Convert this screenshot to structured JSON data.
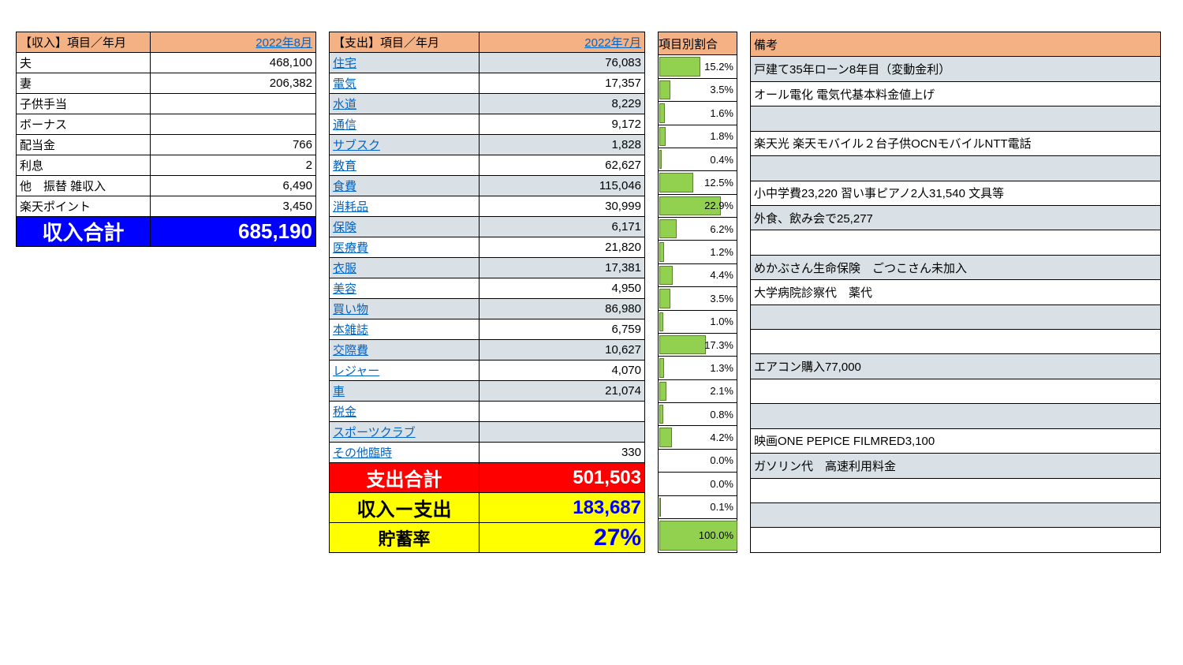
{
  "income": {
    "header_label": "【収入】項目／年月",
    "header_period": "2022年8月",
    "rows": [
      {
        "label": "夫",
        "value": "468,100"
      },
      {
        "label": "妻",
        "value": "206,382"
      },
      {
        "label": "子供手当",
        "value": ""
      },
      {
        "label": "ボーナス",
        "value": ""
      },
      {
        "label": "配当金",
        "value": "766"
      },
      {
        "label": "利息",
        "value": "2"
      },
      {
        "label": "他　振替 雑収入",
        "value": "6,490"
      },
      {
        "label": "楽天ポイント",
        "value": "3,450"
      }
    ],
    "total_label": "収入合計",
    "total_value": "685,190"
  },
  "expense": {
    "header_label": "【支出】項目／年月",
    "header_period": "2022年7月",
    "pct_header": "項目別割合",
    "notes_header": "備考",
    "rows": [
      {
        "label": "住宅",
        "value": "76,083",
        "pct": 15.2,
        "pct_label": "15.2%",
        "note": "戸建て35年ローン8年目（変動金利）"
      },
      {
        "label": "電気",
        "value": "17,357",
        "pct": 3.5,
        "pct_label": "3.5%",
        "note": "オール電化 電気代基本料金値上げ"
      },
      {
        "label": "水道",
        "value": "8,229",
        "pct": 1.6,
        "pct_label": "1.6%",
        "note": ""
      },
      {
        "label": "通信",
        "value": "9,172",
        "pct": 1.8,
        "pct_label": "1.8%",
        "note": "楽天光 楽天モバイル２台子供OCNモバイルNTT電話"
      },
      {
        "label": "サブスク",
        "value": "1,828",
        "pct": 0.4,
        "pct_label": "0.4%",
        "note": ""
      },
      {
        "label": "教育",
        "value": "62,627",
        "pct": 12.5,
        "pct_label": "12.5%",
        "note": "小中学費23,220 習い事ピアノ2人31,540 文具等"
      },
      {
        "label": "食費",
        "value": "115,046",
        "pct": 22.9,
        "pct_label": "22.9%",
        "note": "外食、飲み会で25,277"
      },
      {
        "label": "消耗品",
        "value": "30,999",
        "pct": 6.2,
        "pct_label": "6.2%",
        "note": ""
      },
      {
        "label": "保険",
        "value": "6,171",
        "pct": 1.2,
        "pct_label": "1.2%",
        "note": "めかぶさん生命保険　ごつこさん未加入"
      },
      {
        "label": "医療費",
        "value": "21,820",
        "pct": 4.4,
        "pct_label": "4.4%",
        "note": "大学病院診察代　薬代"
      },
      {
        "label": "衣服",
        "value": "17,381",
        "pct": 3.5,
        "pct_label": "3.5%",
        "note": ""
      },
      {
        "label": "美容",
        "value": "4,950",
        "pct": 1.0,
        "pct_label": "1.0%",
        "note": ""
      },
      {
        "label": "買い物",
        "value": "86,980",
        "pct": 17.3,
        "pct_label": "17.3%",
        "note": "エアコン購入77,000"
      },
      {
        "label": "本雑誌",
        "value": "6,759",
        "pct": 1.3,
        "pct_label": "1.3%",
        "note": ""
      },
      {
        "label": "交際費",
        "value": "10,627",
        "pct": 2.1,
        "pct_label": "2.1%",
        "note": ""
      },
      {
        "label": "レジャー",
        "value": "4,070",
        "pct": 0.8,
        "pct_label": "0.8%",
        "note": "映画ONE PEPICE FILMRED3,100"
      },
      {
        "label": "車",
        "value": "21,074",
        "pct": 4.2,
        "pct_label": "4.2%",
        "note": "ガソリン代　高速利用料金"
      },
      {
        "label": "税金",
        "value": "",
        "pct": 0.0,
        "pct_label": "0.0%",
        "note": ""
      },
      {
        "label": "スポーツクラブ",
        "value": "",
        "pct": 0.0,
        "pct_label": "0.0%",
        "note": ""
      },
      {
        "label": "その他臨時",
        "value": "330",
        "pct": 0.1,
        "pct_label": "0.1%",
        "note": ""
      }
    ],
    "total_label": "支出合計",
    "total_value": "501,503",
    "total_pct_label": "100.0%",
    "diff_label": "収入ー支出",
    "diff_value": "183,687",
    "rate_label": "貯蓄率",
    "rate_value": "27%"
  },
  "style": {
    "bar_max_pct": 30,
    "bar_color": "#92d050",
    "header_bg": "#f4b183",
    "alt_bg": "#d9e1e6",
    "link_color": "#0563c1"
  }
}
